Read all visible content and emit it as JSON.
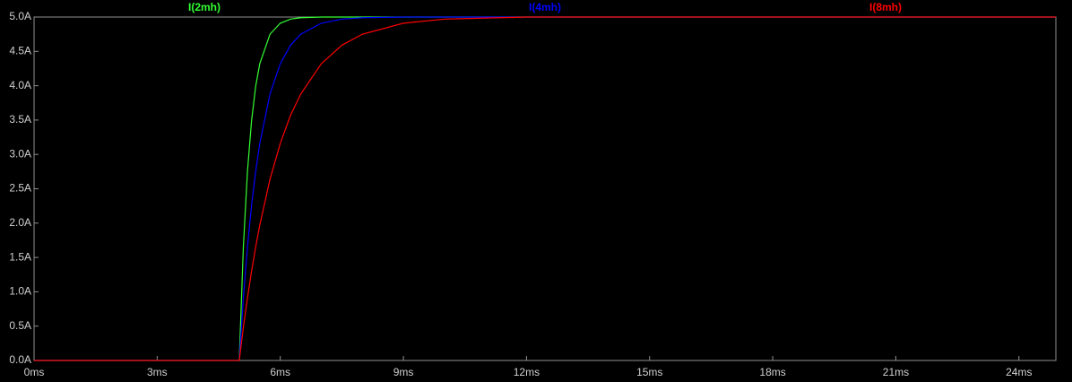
{
  "chart_data": {
    "type": "line",
    "x": [
      0,
      5,
      5.1,
      5.2,
      5.3,
      5.4,
      5.5,
      5.75,
      6,
      6.25,
      6.5,
      7,
      7.5,
      8,
      9,
      10,
      12,
      15,
      24.9
    ],
    "series": [
      {
        "name": "I(2mh)",
        "color": "#33ff33",
        "values": [
          0,
          0,
          1.65,
          2.75,
          3.49,
          3.99,
          4.32,
          4.75,
          4.91,
          4.97,
          4.99,
          5,
          5,
          5,
          5,
          5,
          5,
          5,
          5
        ]
      },
      {
        "name": "I(4mh)",
        "color": "#0000ff",
        "values": [
          0,
          0,
          0.91,
          1.65,
          2.26,
          2.75,
          3.16,
          3.88,
          4.32,
          4.59,
          4.75,
          4.91,
          4.97,
          4.99,
          5,
          5,
          5,
          5,
          5
        ]
      },
      {
        "name": "I(8mh)",
        "color": "#ff0000",
        "values": [
          0,
          0,
          0.48,
          0.91,
          1.3,
          1.65,
          1.97,
          2.64,
          3.16,
          3.57,
          3.88,
          4.32,
          4.59,
          4.75,
          4.91,
          4.97,
          5,
          5,
          5
        ]
      }
    ],
    "xlim": [
      0,
      24.9
    ],
    "xticks": [
      {
        "value": 0,
        "label": "0ms"
      },
      {
        "value": 3,
        "label": "3ms"
      },
      {
        "value": 6,
        "label": "6ms"
      },
      {
        "value": 9,
        "label": "9ms"
      },
      {
        "value": 12,
        "label": "12ms"
      },
      {
        "value": 15,
        "label": "15ms"
      },
      {
        "value": 18,
        "label": "18ms"
      },
      {
        "value": 21,
        "label": "21ms"
      },
      {
        "value": 24,
        "label": "24ms"
      }
    ],
    "ylim": [
      0,
      5
    ],
    "yticks": [
      {
        "value": 0,
        "label": "0.0A"
      },
      {
        "value": 0.5,
        "label": "0.5A"
      },
      {
        "value": 1,
        "label": "1.0A"
      },
      {
        "value": 1.5,
        "label": "1.5A"
      },
      {
        "value": 2,
        "label": "2.0A"
      },
      {
        "value": 2.5,
        "label": "2.5A"
      },
      {
        "value": 3,
        "label": "3.0A"
      },
      {
        "value": 3.5,
        "label": "3.5A"
      },
      {
        "value": 4,
        "label": "4.0A"
      },
      {
        "value": 4.5,
        "label": "4.5A"
      },
      {
        "value": 5,
        "label": "5.0A"
      }
    ],
    "grid": false
  }
}
